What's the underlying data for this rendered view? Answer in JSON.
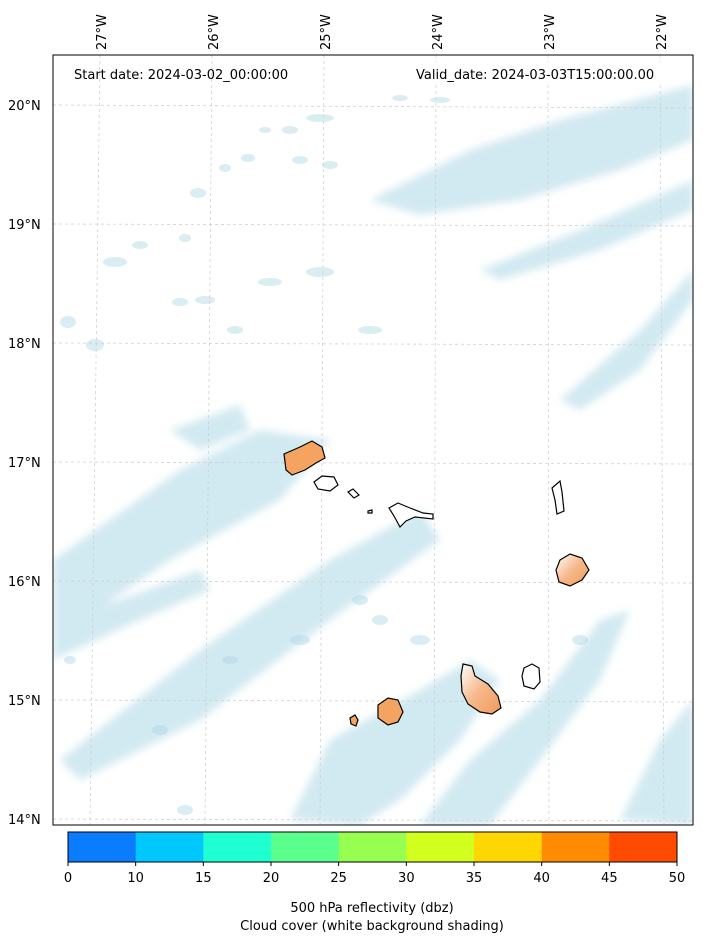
{
  "map": {
    "start_date": "Start date: 2024-03-02_00:00:00",
    "valid_date": "Valid_date: 2024-03-03T15:00:00.00",
    "lon_labels": [
      "27°W",
      "26°W",
      "25°W",
      "24°W",
      "23°W",
      "22°W"
    ],
    "lat_labels": [
      "20°N",
      "19°N",
      "18°N",
      "17°N",
      "16°N",
      "15°N",
      "14°N"
    ],
    "colors": {
      "cloud_shading": "#add8e6",
      "land_fill": "#f4a460",
      "coastline": "#000000",
      "gridline": "#cccccc"
    }
  },
  "colorbar": {
    "ticks": [
      "0",
      "10",
      "15",
      "20",
      "25",
      "30",
      "35",
      "40",
      "45",
      "50"
    ],
    "colors": [
      "#0a7dff",
      "#00c8ff",
      "#1effd2",
      "#5aff8c",
      "#96ff50",
      "#d2ff1e",
      "#ffd700",
      "#ff8c00",
      "#ff4b00"
    ],
    "label_line1": "500 hPa reflectivity (dbz)",
    "label_line2": "Cloud cover (white background shading)"
  }
}
